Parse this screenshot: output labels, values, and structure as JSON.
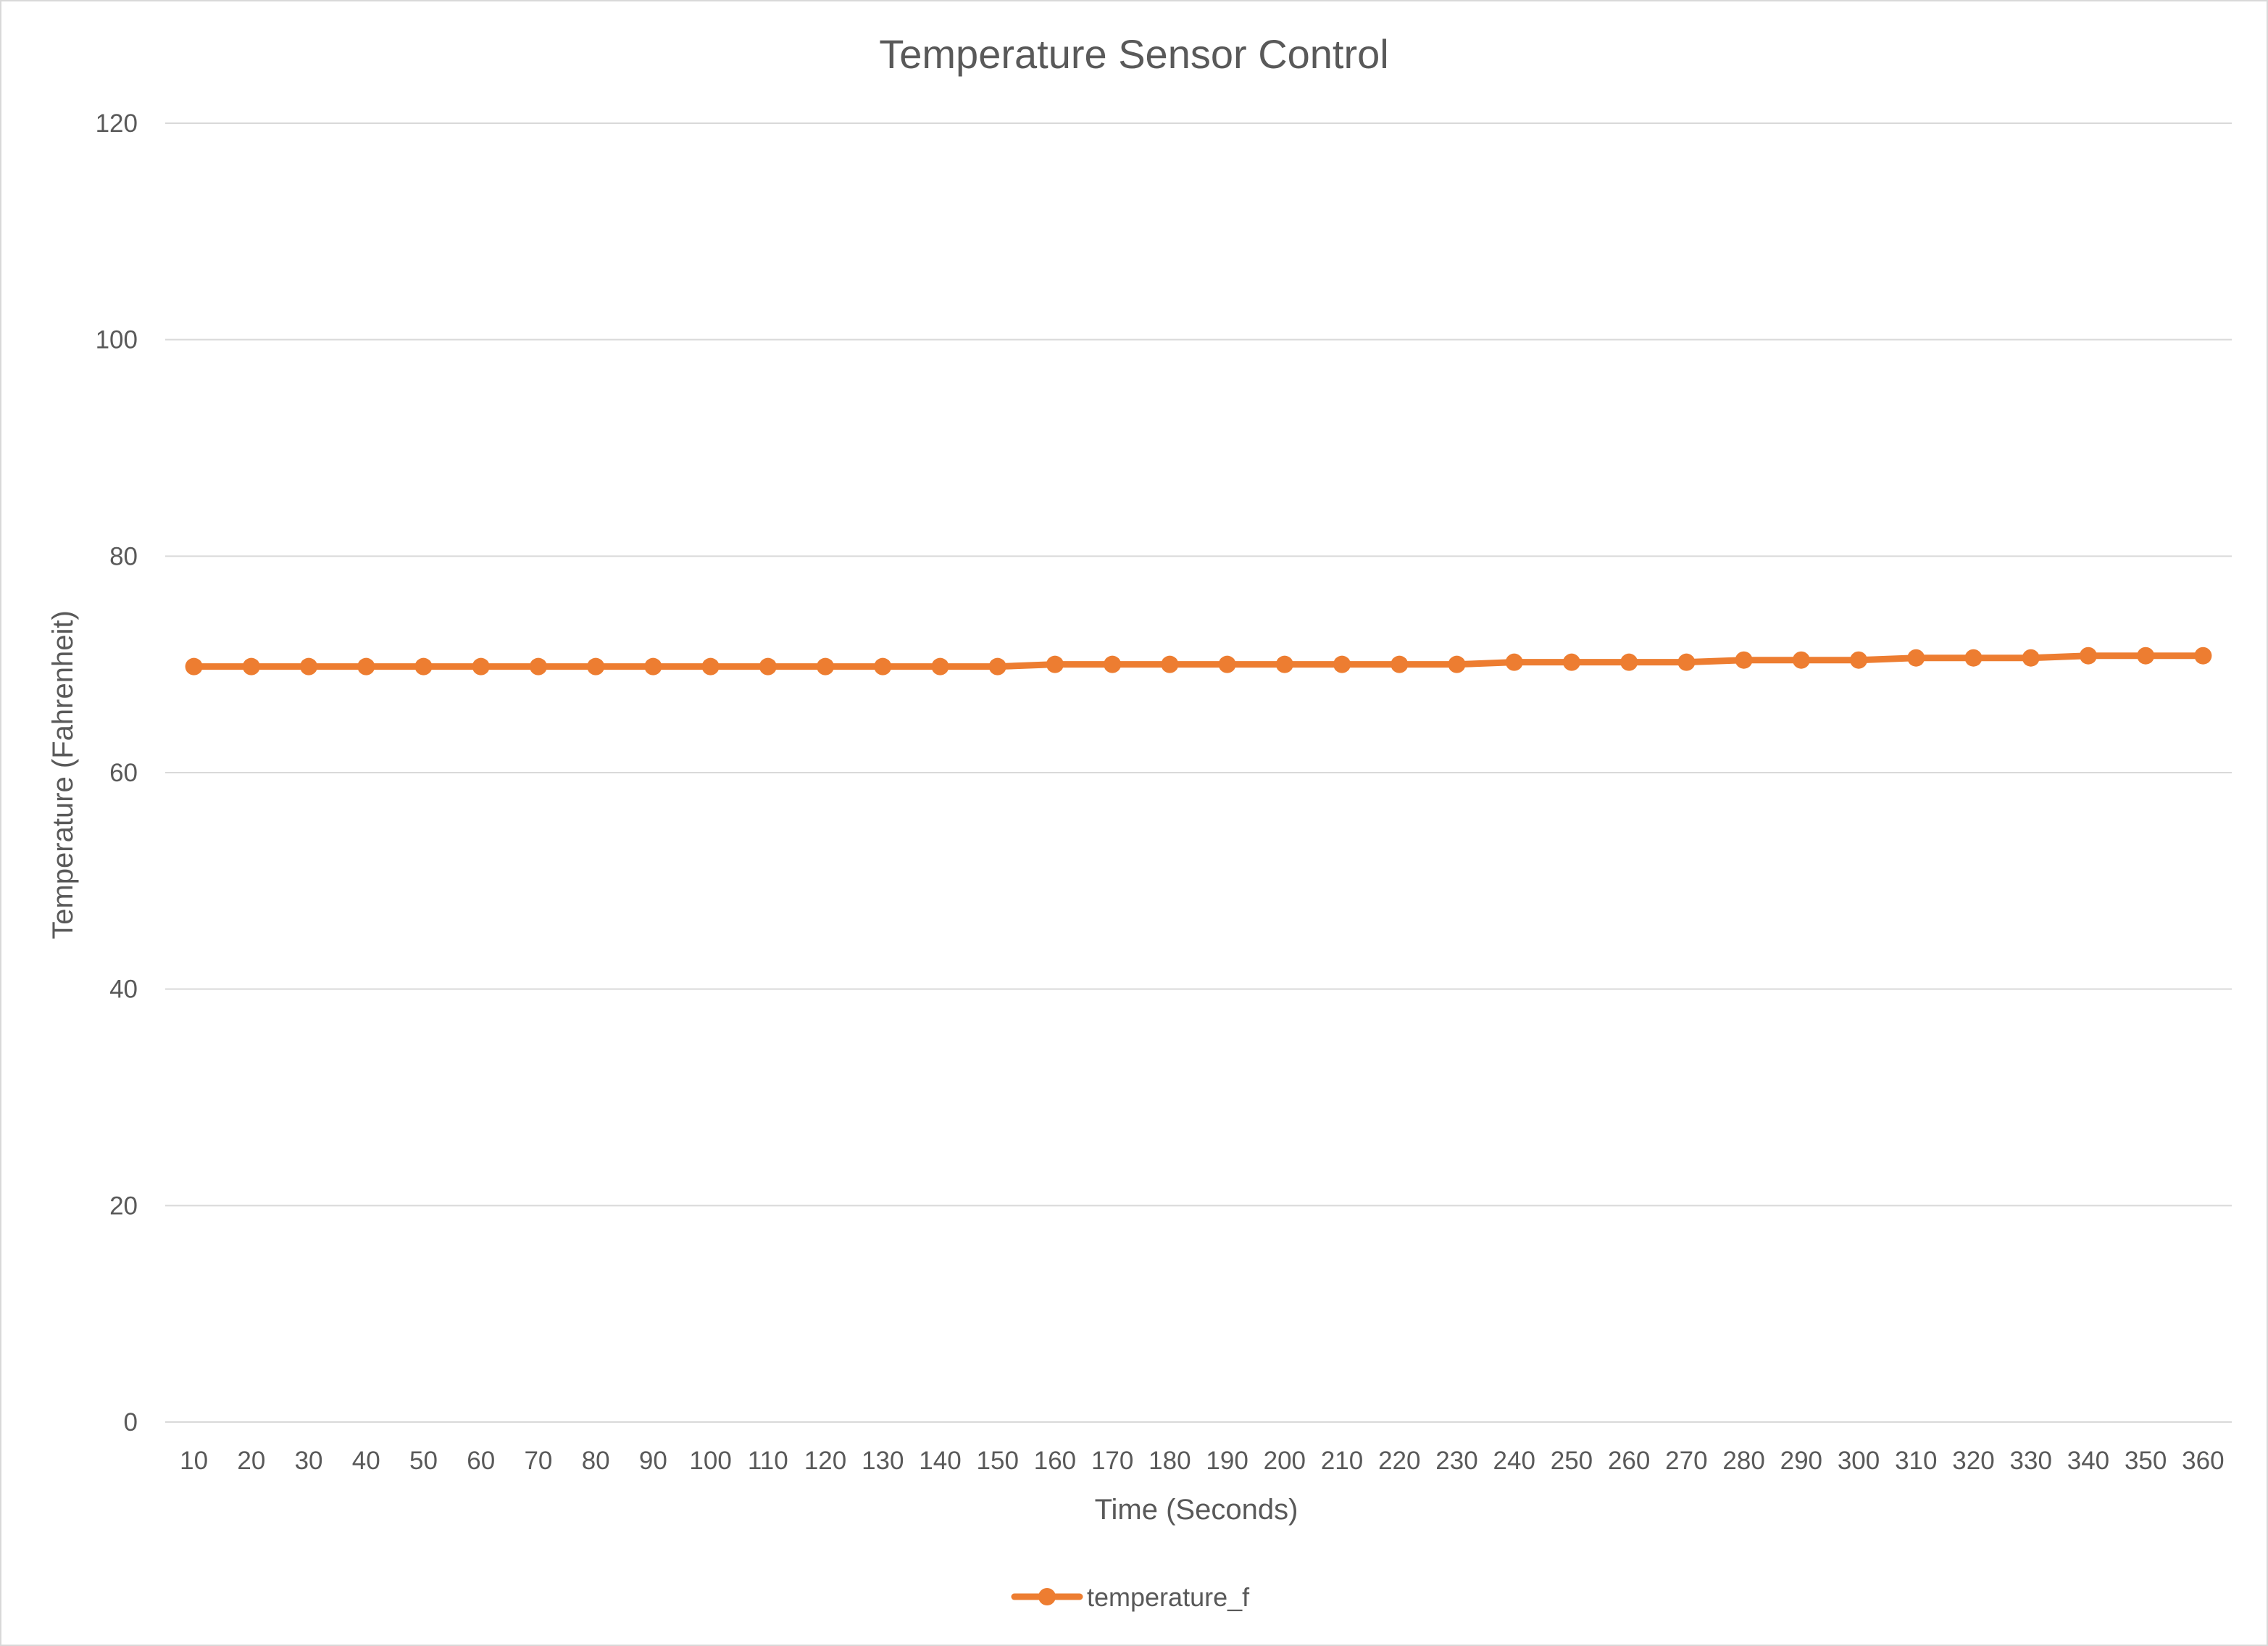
{
  "chart_data": {
    "type": "line",
    "title": "Temperature Sensor Control",
    "xlabel": "Time (Seconds)",
    "ylabel": "Temperature (Fahrenheit)",
    "ylim": [
      0,
      120
    ],
    "yticks": [
      0,
      20,
      40,
      60,
      80,
      100,
      120
    ],
    "grid": true,
    "legend_position": "bottom",
    "categories": [
      "10",
      "20",
      "30",
      "40",
      "50",
      "60",
      "70",
      "80",
      "90",
      "100",
      "110",
      "120",
      "130",
      "140",
      "150",
      "160",
      "170",
      "180",
      "190",
      "200",
      "210",
      "220",
      "230",
      "240",
      "250",
      "260",
      "270",
      "280",
      "290",
      "300",
      "310",
      "320",
      "330",
      "340",
      "350",
      "360"
    ],
    "series": [
      {
        "name": "temperature_f",
        "color": "#ED7D31",
        "values": [
          69.8,
          69.8,
          69.8,
          69.8,
          69.8,
          69.8,
          69.8,
          69.8,
          69.8,
          69.8,
          69.8,
          69.8,
          69.8,
          69.8,
          69.8,
          70.0,
          70.0,
          70.0,
          70.0,
          70.0,
          70.0,
          70.0,
          70.0,
          70.2,
          70.2,
          70.2,
          70.2,
          70.4,
          70.4,
          70.4,
          70.6,
          70.6,
          70.6,
          70.8,
          70.8,
          70.8
        ]
      }
    ]
  }
}
